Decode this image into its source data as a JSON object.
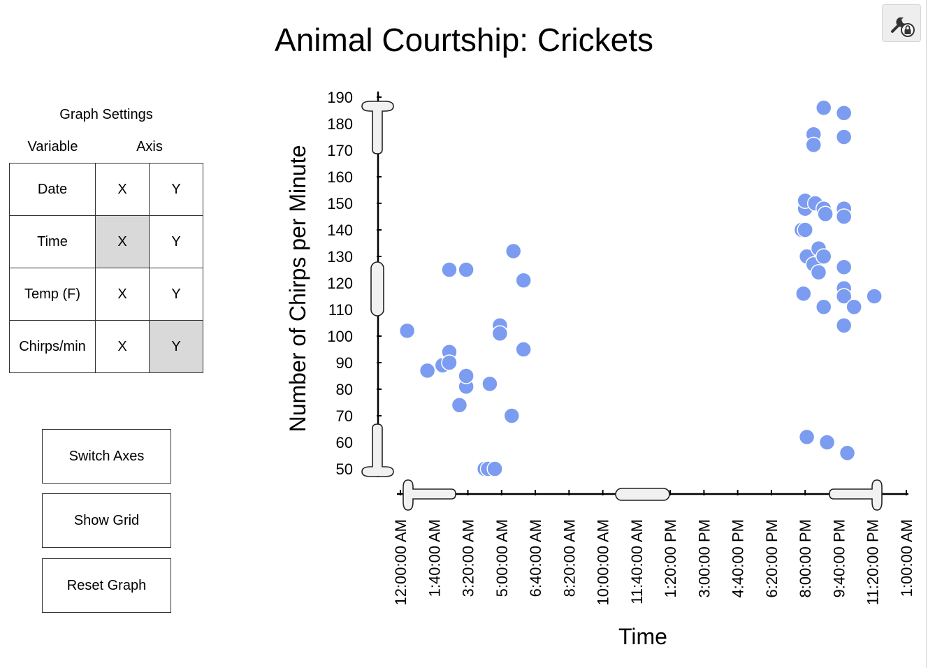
{
  "title": "Animal Courtship: Crickets",
  "settings_icon": "wrench-lock-icon",
  "graph_settings": {
    "title": "Graph Settings",
    "variable_header": "Variable",
    "axis_header": "Axis",
    "rows": [
      {
        "variable": "Date",
        "x": "X",
        "y": "Y",
        "selected": ""
      },
      {
        "variable": "Time",
        "x": "X",
        "y": "Y",
        "selected": "x"
      },
      {
        "variable": "Temp (F)",
        "x": "X",
        "y": "Y",
        "selected": ""
      },
      {
        "variable": "Chirps/min",
        "x": "X",
        "y": "Y",
        "selected": "y"
      }
    ]
  },
  "buttons": {
    "switch_axes": "Switch Axes",
    "show_grid": "Show Grid",
    "reset_graph": "Reset Graph"
  },
  "chart_data": {
    "type": "scatter",
    "title": "",
    "xlabel": "Time",
    "ylabel": "Number of Chirps per Minute",
    "point_color": "#7b9cf0",
    "grid": false,
    "ylim": [
      50,
      190
    ],
    "yticks": [
      50,
      60,
      70,
      80,
      90,
      100,
      110,
      120,
      130,
      140,
      150,
      160,
      170,
      180,
      190
    ],
    "xlim": [
      "12:00:00 AM",
      "1:00:00 AM (next day)"
    ],
    "xticks": [
      "12:00:00 AM",
      "1:40:00 AM",
      "3:20:00 AM",
      "5:00:00 AM",
      "6:40:00 AM",
      "8:20:00 AM",
      "10:00:00 AM",
      "11:40:00 AM",
      "1:20:00 PM",
      "3:00:00 PM",
      "4:40:00 PM",
      "6:20:00 PM",
      "8:00:00 PM",
      "9:40:00 PM",
      "11:20:00 PM",
      "1:00:00 AM"
    ],
    "points": [
      {
        "x": "12:20 AM",
        "y": 102
      },
      {
        "x": "1:20 AM",
        "y": 87
      },
      {
        "x": "2:05 AM",
        "y": 89
      },
      {
        "x": "2:25 AM",
        "y": 94
      },
      {
        "x": "2:25 AM",
        "y": 90
      },
      {
        "x": "2:25 AM",
        "y": 125
      },
      {
        "x": "3:15 AM",
        "y": 125
      },
      {
        "x": "2:55 AM",
        "y": 74
      },
      {
        "x": "3:15 AM",
        "y": 81
      },
      {
        "x": "3:15 AM",
        "y": 85
      },
      {
        "x": "4:10 AM",
        "y": 50
      },
      {
        "x": "4:20 AM",
        "y": 50
      },
      {
        "x": "4:40 AM",
        "y": 50
      },
      {
        "x": "4:25 AM",
        "y": 82
      },
      {
        "x": "4:55 AM",
        "y": 104
      },
      {
        "x": "4:55 AM",
        "y": 101
      },
      {
        "x": "5:30 AM",
        "y": 70
      },
      {
        "x": "5:35 AM",
        "y": 132
      },
      {
        "x": "6:05 AM",
        "y": 121
      },
      {
        "x": "6:05 AM",
        "y": 95
      },
      {
        "x": "7:50 PM",
        "y": 140
      },
      {
        "x": "8:00 PM",
        "y": 140
      },
      {
        "x": "7:55 PM",
        "y": 116
      },
      {
        "x": "8:00 PM",
        "y": 148
      },
      {
        "x": "8:00 PM",
        "y": 151
      },
      {
        "x": "8:05 PM",
        "y": 62
      },
      {
        "x": "8:05 PM",
        "y": 130
      },
      {
        "x": "8:25 PM",
        "y": 127
      },
      {
        "x": "8:30 PM",
        "y": 150
      },
      {
        "x": "8:25 PM",
        "y": 176
      },
      {
        "x": "8:25 PM",
        "y": 172
      },
      {
        "x": "8:40 PM",
        "y": 124
      },
      {
        "x": "8:40 PM",
        "y": 133
      },
      {
        "x": "8:55 PM",
        "y": 148
      },
      {
        "x": "9:00 PM",
        "y": 146
      },
      {
        "x": "8:55 PM",
        "y": 130
      },
      {
        "x": "8:55 PM",
        "y": 111
      },
      {
        "x": "8:55 PM",
        "y": 186
      },
      {
        "x": "9:05 PM",
        "y": 60
      },
      {
        "x": "9:55 PM",
        "y": 184
      },
      {
        "x": "9:55 PM",
        "y": 175
      },
      {
        "x": "9:55 PM",
        "y": 148
      },
      {
        "x": "9:55 PM",
        "y": 145
      },
      {
        "x": "9:55 PM",
        "y": 126
      },
      {
        "x": "9:55 PM",
        "y": 118
      },
      {
        "x": "9:55 PM",
        "y": 115
      },
      {
        "x": "9:55 PM",
        "y": 104
      },
      {
        "x": "10:05 PM",
        "y": 56
      },
      {
        "x": "10:25 PM",
        "y": 111
      },
      {
        "x": "11:25 PM",
        "y": 115
      }
    ]
  }
}
